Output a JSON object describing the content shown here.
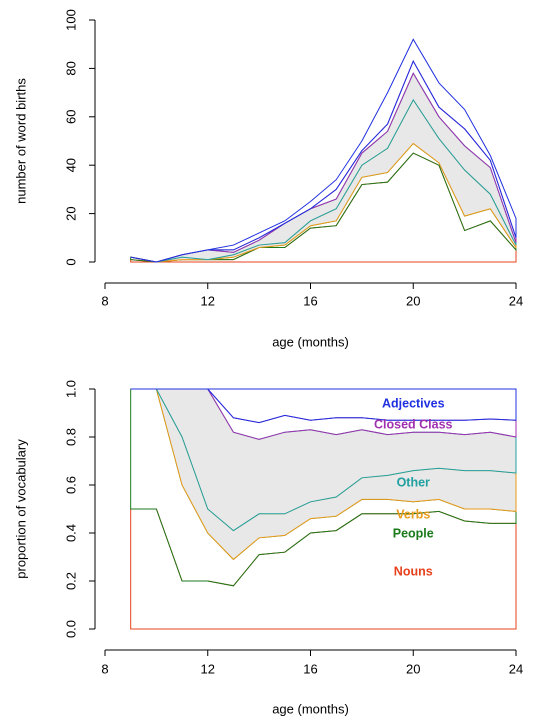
{
  "chart_data": [
    {
      "type": "stacked_area",
      "x_label": "age (months)",
      "y_label": "number of word births",
      "x": [
        9,
        10,
        11,
        12,
        13,
        14,
        15,
        16,
        17,
        18,
        19,
        20,
        21,
        22,
        23,
        24
      ],
      "xlim": [
        8,
        24
      ],
      "xticks": [
        8,
        12,
        16,
        20,
        24
      ],
      "ylim": [
        0,
        100
      ],
      "yticks": [
        0,
        20,
        40,
        60,
        80,
        100
      ],
      "series": [
        {
          "color": "#e8401c",
          "values": [
            1,
            0,
            1,
            1,
            1,
            6,
            6,
            14,
            15,
            32,
            33,
            45,
            40,
            13,
            17,
            5
          ]
        },
        {
          "color": "#1a7a1a",
          "values": [
            1,
            0,
            0,
            0,
            1,
            0,
            1,
            1,
            2,
            3,
            4,
            4,
            1,
            6,
            5,
            1
          ]
        },
        {
          "color": "#e89a1a",
          "fill": "#e8e8e8",
          "values": [
            0,
            0,
            1,
            0,
            1,
            1,
            1,
            2,
            5,
            5,
            10,
            18,
            10,
            19,
            6,
            1
          ]
        },
        {
          "color": "#20a0a0",
          "fill": "#e8e8e8",
          "values": [
            0,
            0,
            1,
            4,
            1,
            2,
            8,
            5,
            4,
            5,
            7,
            11,
            9,
            10,
            11,
            1
          ]
        },
        {
          "color": "#a030b0",
          "values": [
            0,
            0,
            0,
            0,
            1,
            1,
            0,
            0,
            4,
            1,
            3,
            5,
            4,
            7,
            3,
            2
          ]
        },
        {
          "color": "#2030e0",
          "values": [
            0,
            0,
            0,
            0,
            2,
            2,
            1,
            3,
            4,
            4,
            13,
            9,
            10,
            8,
            2,
            8
          ]
        }
      ]
    },
    {
      "type": "stacked_area",
      "x_label": "age (months)",
      "y_label": "proportion of vocabulary",
      "x": [
        9,
        10,
        11,
        12,
        13,
        14,
        15,
        16,
        17,
        18,
        19,
        20,
        21,
        22,
        23,
        24
      ],
      "xlim": [
        8,
        24
      ],
      "xticks": [
        8,
        12,
        16,
        20,
        24
      ],
      "ylim": [
        0,
        1
      ],
      "yticks": [
        {
          "value": 0,
          "label": "0.0"
        },
        0.2,
        0.4,
        0.6,
        0.8,
        {
          "value": 1,
          "label": "1.0"
        }
      ],
      "series": [
        {
          "name": "Nouns",
          "color": "#e8401c",
          "values": [
            0.5,
            0.5,
            0.2,
            0.2,
            0.18,
            0.31,
            0.32,
            0.4,
            0.41,
            0.48,
            0.48,
            0.48,
            0.49,
            0.45,
            0.44,
            0.44
          ]
        },
        {
          "name": "People",
          "color": "#1a7a1a",
          "values": [
            0.5,
            0.5,
            0.4,
            0.2,
            0.11,
            0.07,
            0.07,
            0.06,
            0.06,
            0.06,
            0.06,
            0.05,
            0.05,
            0.05,
            0.06,
            0.05
          ]
        },
        {
          "name": "Verbs",
          "color": "#e89a1a",
          "fill": "#e8e8e8",
          "values": [
            0,
            0,
            0.2,
            0.1,
            0.12,
            0.1,
            0.09,
            0.07,
            0.08,
            0.09,
            0.1,
            0.13,
            0.13,
            0.16,
            0.16,
            0.16
          ]
        },
        {
          "name": "Other",
          "color": "#20a0a0",
          "fill": "#e8e8e8",
          "values": [
            0,
            0,
            0.2,
            0.5,
            0.41,
            0.31,
            0.34,
            0.3,
            0.26,
            0.2,
            0.17,
            0.16,
            0.15,
            0.15,
            0.16,
            0.15
          ]
        },
        {
          "name": "Closed Class",
          "color": "#a030b0",
          "values": [
            0,
            0,
            0,
            0,
            0.06,
            0.07,
            0.07,
            0.04,
            0.07,
            0.05,
            0.06,
            0.05,
            0.05,
            0.06,
            0.055,
            0.07
          ]
        },
        {
          "name": "Adjectives",
          "color": "#2030e0",
          "values": [
            0,
            0,
            0,
            0,
            0.12,
            0.14,
            0.11,
            0.13,
            0.12,
            0.12,
            0.13,
            0.13,
            0.13,
            0.13,
            0.125,
            0.13
          ]
        }
      ]
    }
  ]
}
